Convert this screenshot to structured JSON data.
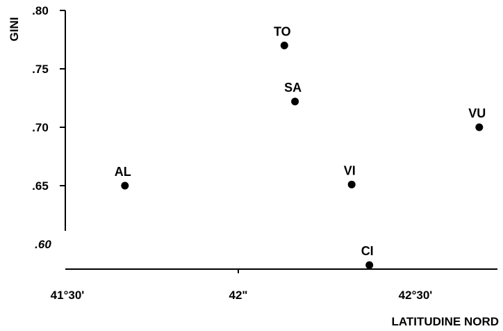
{
  "chart_data": {
    "type": "scatter",
    "title": "",
    "xlabel": "LATITUDINE NORD",
    "ylabel": "GINI",
    "xlim": [
      41.5,
      42.6
    ],
    "ylim": [
      0.58,
      0.8
    ],
    "x_ticks": [
      {
        "value": 41.5,
        "label": "41°30'"
      },
      {
        "value": 42.0,
        "label": "42\""
      },
      {
        "value": 42.5,
        "label": "42°30'"
      }
    ],
    "y_ticks": [
      {
        "value": 0.8,
        "label": ".80"
      },
      {
        "value": 0.75,
        "label": ".75"
      },
      {
        "value": 0.7,
        "label": ".70"
      },
      {
        "value": 0.65,
        "label": ".65"
      },
      {
        "value": 0.6,
        "label": ".60"
      }
    ],
    "points": [
      {
        "label": "AL",
        "x": 41.68,
        "y": 0.65
      },
      {
        "label": "TO",
        "x": 42.13,
        "y": 0.77
      },
      {
        "label": "SA",
        "x": 42.16,
        "y": 0.722
      },
      {
        "label": "VI",
        "x": 42.32,
        "y": 0.651
      },
      {
        "label": "CI",
        "x": 42.37,
        "y": 0.582
      },
      {
        "label": "VU",
        "x": 42.68,
        "y": 0.7
      }
    ],
    "grid": false,
    "legend": "none"
  }
}
